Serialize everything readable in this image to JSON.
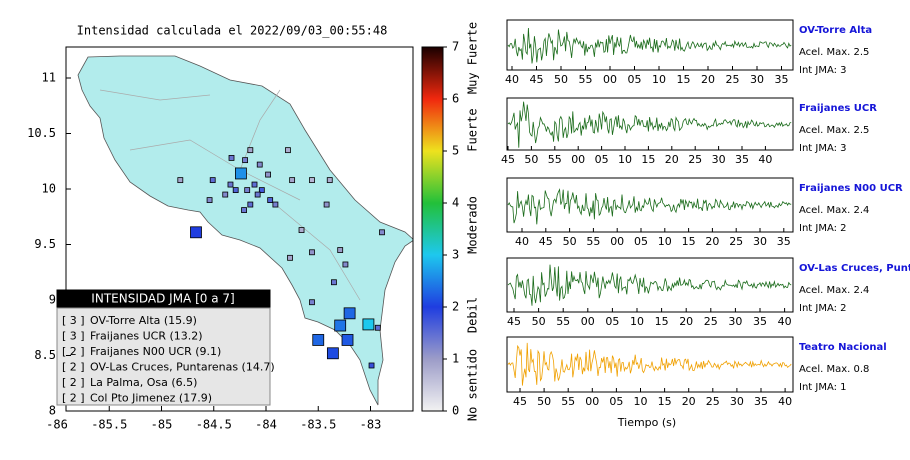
{
  "map": {
    "title": "Intensidad calculada el 2022/09/03_00:55:48",
    "lon_ticks": [
      -86,
      -85.5,
      -85,
      -84.5,
      -84,
      -83.5,
      -83
    ],
    "lat_ticks": [
      8,
      8.5,
      9,
      9.5,
      10,
      10.5,
      11
    ],
    "markers": [
      {
        "lon": -84.24,
        "lat": 10.14,
        "intensity": 2.6,
        "size": "big"
      },
      {
        "lon": -84.67,
        "lat": 9.61,
        "intensity": 2.0,
        "size": "big"
      },
      {
        "lon": -83.2,
        "lat": 8.88,
        "intensity": 2.3,
        "size": "big"
      },
      {
        "lon": -83.02,
        "lat": 8.78,
        "intensity": 3.0,
        "size": "big"
      },
      {
        "lon": -83.29,
        "lat": 8.77,
        "intensity": 2.4,
        "size": "big"
      },
      {
        "lon": -83.5,
        "lat": 8.64,
        "intensity": 2.3,
        "size": "big"
      },
      {
        "lon": -83.22,
        "lat": 8.64,
        "intensity": 2.2,
        "size": "big"
      },
      {
        "lon": -83.36,
        "lat": 8.52,
        "intensity": 2.1,
        "size": "big"
      },
      {
        "lon": -84.51,
        "lat": 10.08,
        "intensity": 1.5,
        "size": "small"
      },
      {
        "lon": -84.34,
        "lat": 10.04,
        "intensity": 1.4,
        "size": "small"
      },
      {
        "lon": -84.29,
        "lat": 9.99,
        "intensity": 1.6,
        "size": "small"
      },
      {
        "lon": -84.18,
        "lat": 9.99,
        "intensity": 1.3,
        "size": "small"
      },
      {
        "lon": -84.11,
        "lat": 10.04,
        "intensity": 1.5,
        "size": "small"
      },
      {
        "lon": -84.04,
        "lat": 9.99,
        "intensity": 1.7,
        "size": "small"
      },
      {
        "lon": -84.08,
        "lat": 9.95,
        "intensity": 1.4,
        "size": "small"
      },
      {
        "lon": -83.96,
        "lat": 9.9,
        "intensity": 1.6,
        "size": "small"
      },
      {
        "lon": -83.91,
        "lat": 9.86,
        "intensity": 1.3,
        "size": "small"
      },
      {
        "lon": -84.15,
        "lat": 9.86,
        "intensity": 1.5,
        "size": "small"
      },
      {
        "lon": -84.21,
        "lat": 9.81,
        "intensity": 1.4,
        "size": "small"
      },
      {
        "lon": -84.39,
        "lat": 9.95,
        "intensity": 1.2,
        "size": "small"
      },
      {
        "lon": -83.98,
        "lat": 10.13,
        "intensity": 1.1,
        "size": "small"
      },
      {
        "lon": -84.06,
        "lat": 10.22,
        "intensity": 1.2,
        "size": "small"
      },
      {
        "lon": -84.2,
        "lat": 10.26,
        "intensity": 1.3,
        "size": "small"
      },
      {
        "lon": -84.33,
        "lat": 10.28,
        "intensity": 1.4,
        "size": "small"
      },
      {
        "lon": -83.79,
        "lat": 10.35,
        "intensity": 0.8,
        "size": "small"
      },
      {
        "lon": -83.75,
        "lat": 10.08,
        "intensity": 0.9,
        "size": "small"
      },
      {
        "lon": -83.56,
        "lat": 10.08,
        "intensity": 0.7,
        "size": "small"
      },
      {
        "lon": -83.39,
        "lat": 10.08,
        "intensity": 0.8,
        "size": "small"
      },
      {
        "lon": -83.42,
        "lat": 9.86,
        "intensity": 1.1,
        "size": "small"
      },
      {
        "lon": -83.29,
        "lat": 9.45,
        "intensity": 1.0,
        "size": "small"
      },
      {
        "lon": -83.24,
        "lat": 9.32,
        "intensity": 1.2,
        "size": "small"
      },
      {
        "lon": -83.35,
        "lat": 9.16,
        "intensity": 1.4,
        "size": "small"
      },
      {
        "lon": -83.56,
        "lat": 8.98,
        "intensity": 1.3,
        "size": "small"
      },
      {
        "lon": -83.77,
        "lat": 9.38,
        "intensity": 0.9,
        "size": "small"
      },
      {
        "lon": -82.89,
        "lat": 9.61,
        "intensity": 1.2,
        "size": "small"
      },
      {
        "lon": -82.93,
        "lat": 8.75,
        "intensity": 1.5,
        "size": "small"
      },
      {
        "lon": -82.99,
        "lat": 8.41,
        "intensity": 1.8,
        "size": "small"
      },
      {
        "lon": -83.66,
        "lat": 9.63,
        "intensity": 0.8,
        "size": "small"
      },
      {
        "lon": -84.54,
        "lat": 9.9,
        "intensity": 1.2,
        "size": "small"
      },
      {
        "lon": -84.82,
        "lat": 10.08,
        "intensity": 0.9,
        "size": "small"
      },
      {
        "lon": -84.15,
        "lat": 10.35,
        "intensity": 0.9,
        "size": "small"
      },
      {
        "lon": -83.56,
        "lat": 9.43,
        "intensity": 1.1,
        "size": "small"
      }
    ]
  },
  "colorbar": {
    "ticks": [
      0,
      1,
      2,
      3,
      4,
      5,
      6,
      7
    ],
    "labels": [
      "No sentido",
      "Debil",
      "Moderado",
      "Fuerte",
      "Muy Fuerte"
    ]
  },
  "legend": {
    "title": "INTENSIDAD JMA [0 a 7]",
    "entries": [
      {
        "level": "[ 3 ]",
        "label": "OV-Torre Alta (15.9)"
      },
      {
        "level": "[ 3 ]",
        "label": "Fraijanes UCR (13.2)"
      },
      {
        "level": "[ 2 ]",
        "label": "Fraijanes N00 UCR (9.1)"
      },
      {
        "level": "[ 2 ]",
        "label": "OV-Las Cruces, Puntarenas (14.7)"
      },
      {
        "level": "[ 2 ]",
        "label": "La Palma, Osa (6.5)"
      },
      {
        "level": "[ 2 ]",
        "label": "Col Pto Jimenez (17.9)"
      }
    ]
  },
  "waveforms": {
    "xlabel": "Tiempo (s)",
    "panels": [
      {
        "station": "OV-Torre Alta",
        "acel": "Acel. Max. 2.5",
        "int": "Int JMA: 3",
        "color": "#1a6b1a",
        "ticks": [
          "40",
          "45",
          "50",
          "55",
          "00",
          "05",
          "10",
          "15",
          "20",
          "25",
          "30",
          "35"
        ]
      },
      {
        "station": "Fraijanes UCR",
        "acel": "Acel. Max. 2.5",
        "int": "Int JMA: 3",
        "color": "#1a6b1a",
        "ticks": [
          "45",
          "50",
          "55",
          "00",
          "05",
          "10",
          "15",
          "20",
          "25",
          "30",
          "35",
          "40"
        ]
      },
      {
        "station": "Fraijanes N00 UCR",
        "acel": "Acel. Max. 2.4",
        "int": "Int JMA: 2",
        "color": "#1a6b1a",
        "ticks": [
          "40",
          "45",
          "50",
          "55",
          "00",
          "05",
          "10",
          "15",
          "20",
          "25",
          "30",
          "35"
        ]
      },
      {
        "station": "OV-Las Cruces, Puntar",
        "acel": "Acel. Max. 2.4",
        "int": "Int JMA: 2",
        "color": "#1a6b1a",
        "ticks": [
          "45",
          "50",
          "55",
          "00",
          "05",
          "10",
          "15",
          "20",
          "25",
          "30",
          "35",
          "40"
        ]
      },
      {
        "station": "Teatro Nacional",
        "acel": "Acel. Max. 0.8",
        "int": "Int JMA: 1",
        "color": "#f0a000",
        "ticks": [
          "45",
          "50",
          "55",
          "00",
          "05",
          "10",
          "15",
          "20",
          "25",
          "30",
          "35",
          "40"
        ]
      }
    ]
  }
}
